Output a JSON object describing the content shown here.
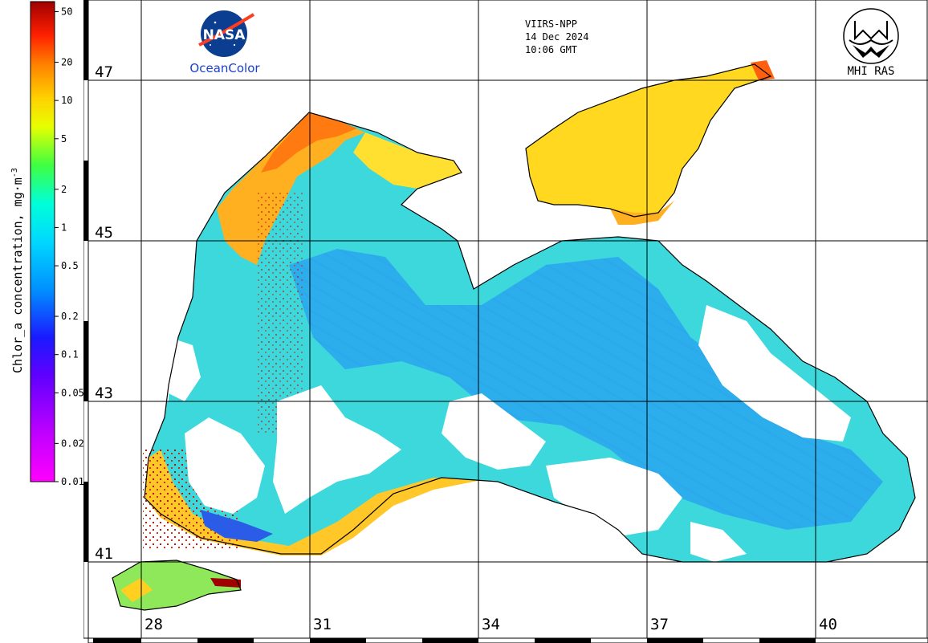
{
  "colorbar": {
    "title": "Chlor_a concentration, mg·m",
    "title_sup": "-3",
    "ticks": [
      "50",
      "20",
      "10",
      "5",
      "2",
      "1",
      "0.5",
      "0.2",
      "0.1",
      "0.05",
      "0.02",
      "0.01"
    ],
    "tick_values": [
      50,
      20,
      10,
      5,
      2,
      1,
      0.5,
      0.2,
      0.1,
      0.05,
      0.02,
      0.01
    ],
    "range": [
      0.01,
      60
    ],
    "scale": "log",
    "colors": [
      "#ff00ff",
      "#a000ff",
      "#2020ff",
      "#00b8ff",
      "#00ffee",
      "#33ff33",
      "#ffff00",
      "#ffb000",
      "#ff4000",
      "#a00000"
    ]
  },
  "header": {
    "sensor": "VIIRS-NPP",
    "date": "14 Dec 2024",
    "time": "10:06 GMT"
  },
  "logos": {
    "nasa": "NASA",
    "oceancolor": "OceanColor",
    "mhi": "MHI RAS"
  },
  "grid": {
    "lat_labels": [
      "47",
      "45",
      "43",
      "41"
    ],
    "lon_labels": [
      "28",
      "31",
      "34",
      "37",
      "40"
    ]
  },
  "colors": {
    "sea_low": "#29a7f0",
    "sea_mid": "#3fe0d4",
    "shelf": "#ffd12a",
    "coastal_high": "#ff8a1a",
    "bloom": "#a00000",
    "land": "#ffffff",
    "coast": "#000000",
    "grid": "#000000"
  }
}
